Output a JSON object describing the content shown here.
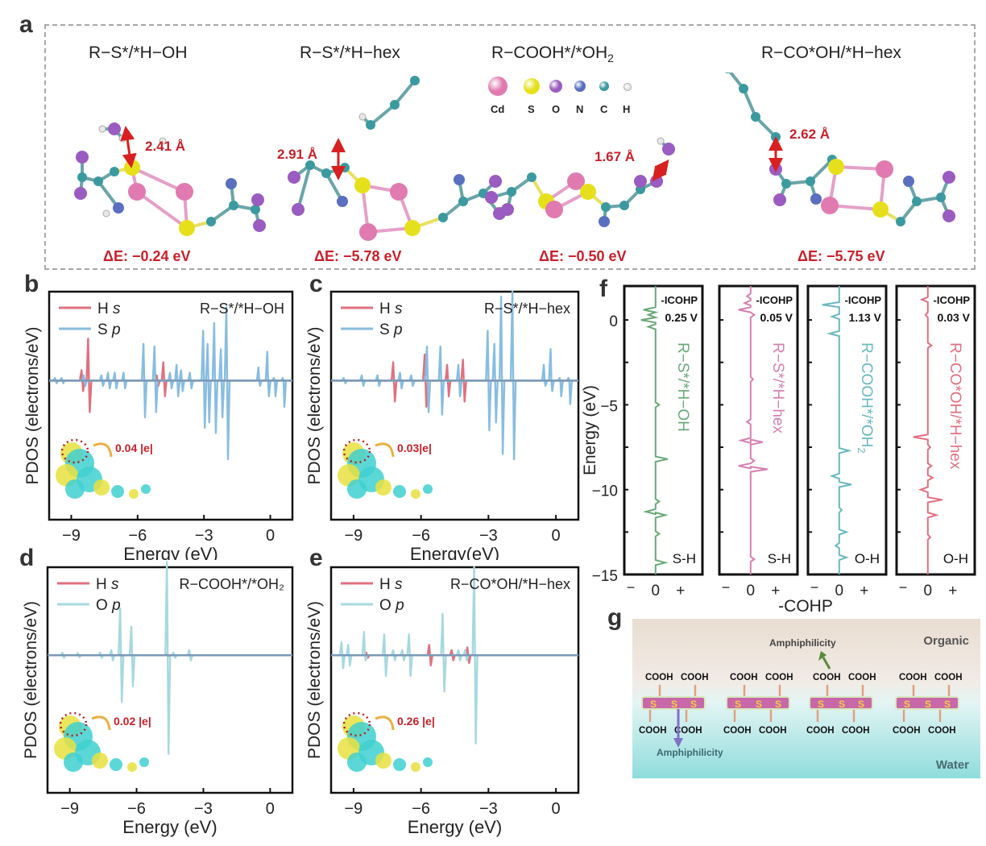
{
  "panel_labels": {
    "a": "a",
    "b": "b",
    "c": "c",
    "d": "d",
    "e": "e",
    "f": "f",
    "g": "g"
  },
  "panel_a": {
    "structures": [
      {
        "title": "R−S*/*H−OH",
        "distance": "2.41 Å",
        "delta_e": "ΔE: −0.24 eV"
      },
      {
        "title": "R−S*/*H−hex",
        "distance": "2.91 Å",
        "delta_e": "ΔE: −5.78 eV"
      },
      {
        "title": "R−COOH*/*OH",
        "title_sub": "2",
        "distance": "1.67 Å",
        "delta_e": "ΔE: −0.50 eV"
      },
      {
        "title": "R−CO*OH/*H−hex",
        "distance": "2.62 Å",
        "delta_e": "ΔE: −5.75 eV"
      }
    ],
    "atom_legend": [
      {
        "label": "Cd",
        "color": "#e07ab0"
      },
      {
        "label": "S",
        "color": "#e6e01c"
      },
      {
        "label": "O",
        "color": "#9a5cc0"
      },
      {
        "label": "N",
        "color": "#5a6fc0"
      },
      {
        "label": "C",
        "color": "#3a9aa0"
      },
      {
        "label": "H",
        "color": "#e8e8e8"
      }
    ]
  },
  "chart_data": [
    {
      "id": "b",
      "type": "line",
      "title": "R−S*/*H−OH",
      "xlabel": "Energy (eV)",
      "ylabel": "PDOS (electrons/eV)",
      "xlim": [
        -10,
        1
      ],
      "xticks": [
        -9,
        -6,
        -3,
        0
      ],
      "xtick_labels": [
        "−9",
        "−6",
        "−3",
        "0"
      ],
      "legend": [
        {
          "name": "H",
          "orb": "s",
          "color": "#e0707e"
        },
        {
          "name": "S",
          "orb": "p",
          "color": "#88bde0"
        }
      ],
      "charge_transfer": "0.04 |e|",
      "series": [
        {
          "name": "H s",
          "color": "#e0707e",
          "peaks": [
            [
              -8.2,
              0.8,
              -0.6
            ],
            [
              -8.5,
              0.2,
              -0.2
            ],
            [
              -4.8,
              0.35,
              -0.3
            ],
            [
              -5.1,
              0.1,
              -0.1
            ]
          ]
        },
        {
          "name": "S p",
          "color": "#88bde0",
          "peaks": [
            [
              -9.7,
              0.05,
              -0.05
            ],
            [
              -9.4,
              0.05,
              -0.05
            ],
            [
              -8.4,
              0.1,
              -0.1
            ],
            [
              -7.6,
              0.1,
              -0.1
            ],
            [
              -7.3,
              0.15,
              -0.15
            ],
            [
              -7.0,
              0.15,
              -0.15
            ],
            [
              -6.6,
              0.15,
              -0.15
            ],
            [
              -5.7,
              0.7,
              -0.7
            ],
            [
              -5.2,
              0.65,
              -0.6
            ],
            [
              -4.5,
              0.15,
              -0.15
            ],
            [
              -4.2,
              0.3,
              -0.3
            ],
            [
              -4.0,
              0.2,
              -0.2
            ],
            [
              -3.6,
              0.15,
              -0.15
            ],
            [
              -3.0,
              0.95,
              -0.9
            ],
            [
              -2.8,
              0.7,
              -0.8
            ],
            [
              -2.5,
              1.1,
              -1.0
            ],
            [
              -2.2,
              0.6,
              -0.7
            ],
            [
              -1.95,
              1.4,
              -1.5
            ],
            [
              -0.5,
              0.25,
              -0.1
            ],
            [
              -0.1,
              0.55,
              -0.3
            ],
            [
              0.2,
              0.05,
              -0.3
            ],
            [
              0.6,
              0.05,
              -0.5
            ]
          ]
        }
      ]
    },
    {
      "id": "c",
      "type": "line",
      "title": "R−S*/*H−hex",
      "xlabel": "Energy(eV)",
      "ylabel": "PDOS (electrons/eV)",
      "xlim": [
        -10,
        1
      ],
      "xticks": [
        -9,
        -6,
        -3,
        0
      ],
      "xtick_labels": [
        "−9",
        "−6",
        "−3",
        "0"
      ],
      "legend": [
        {
          "name": "H",
          "orb": "s",
          "color": "#e0707e"
        },
        {
          "name": "S",
          "orb": "p",
          "color": "#88bde0"
        }
      ],
      "charge_transfer": "0.03|e|",
      "series": [
        {
          "name": "H s",
          "color": "#e0707e",
          "peaks": [
            [
              -7.2,
              0.35,
              -0.4
            ],
            [
              -5.8,
              0.5,
              -0.5
            ],
            [
              -4.8,
              0.3,
              -0.3
            ],
            [
              -4.1,
              0.4,
              -0.4
            ]
          ]
        },
        {
          "name": "S p",
          "color": "#88bde0",
          "peaks": [
            [
              -9.4,
              0.05,
              -0.05
            ],
            [
              -8.6,
              0.1,
              -0.1
            ],
            [
              -7.9,
              0.1,
              -0.1
            ],
            [
              -6.9,
              0.15,
              -0.15
            ],
            [
              -6.4,
              0.1,
              -0.1
            ],
            [
              -5.7,
              0.65,
              -0.6
            ],
            [
              -5.1,
              0.65,
              -0.65
            ],
            [
              -4.3,
              0.3,
              -0.3
            ],
            [
              -3.0,
              0.95,
              -0.95
            ],
            [
              -2.7,
              0.7,
              -0.8
            ],
            [
              -2.4,
              1.6,
              -1.4
            ],
            [
              -1.9,
              1.7,
              -1.5
            ],
            [
              -0.5,
              0.3,
              -0.1
            ],
            [
              -0.2,
              0.6,
              -0.2
            ],
            [
              0.2,
              0.05,
              -0.3
            ],
            [
              0.6,
              0.05,
              -0.45
            ]
          ]
        }
      ]
    },
    {
      "id": "d",
      "type": "line",
      "title": "R−COOH*/*OH₂",
      "xlabel": "Energy (eV)",
      "ylabel": "PDOS (electrons/eV)",
      "xlim": [
        -10,
        1
      ],
      "xticks": [
        -9,
        -6,
        -3,
        0
      ],
      "xtick_labels": [
        "−9",
        "−6",
        "−3",
        "0"
      ],
      "legend": [
        {
          "name": "H",
          "orb": "s",
          "color": "#e0707e"
        },
        {
          "name": "O",
          "orb": "p",
          "color": "#a7d8e0"
        }
      ],
      "charge_transfer": "0.02 |e|",
      "series": [
        {
          "name": "H s",
          "color": "#e0707e",
          "peaks": [
            [
              -6.7,
              0.02,
              -0.02
            ],
            [
              -4.6,
              0.02,
              -0.02
            ]
          ]
        },
        {
          "name": "O p",
          "color": "#a7d8e0",
          "peaks": [
            [
              -9.3,
              0.05,
              -0.05
            ],
            [
              -8.6,
              0.04,
              -0.04
            ],
            [
              -7.6,
              0.05,
              -0.05
            ],
            [
              -7.1,
              0.1,
              -0.1
            ],
            [
              -6.7,
              0.9,
              -0.9
            ],
            [
              -6.2,
              0.55,
              -0.6
            ],
            [
              -4.6,
              1.8,
              -1.9
            ],
            [
              -4.3,
              0.05,
              -0.05
            ],
            [
              -3.6,
              0.1,
              -0.1
            ]
          ]
        }
      ]
    },
    {
      "id": "e",
      "type": "line",
      "title": "R−CO*OH/*H−hex",
      "xlabel": "Energy (eV)",
      "ylabel": "PDOS (electrons/eV)",
      "xlim": [
        -10,
        1
      ],
      "xticks": [
        -9,
        -6,
        -3,
        0
      ],
      "xtick_labels": [
        "−9",
        "−6",
        "−3",
        "0"
      ],
      "legend": [
        {
          "name": "H",
          "orb": "s",
          "color": "#e0707e"
        },
        {
          "name": "O",
          "orb": "p",
          "color": "#a7d8e0"
        }
      ],
      "charge_transfer": "0.26 |e|",
      "series": [
        {
          "name": "H s",
          "color": "#e0707e",
          "peaks": [
            [
              -8.4,
              0.05,
              -0.05
            ],
            [
              -5.6,
              0.2,
              -0.2
            ],
            [
              -4.6,
              0.1,
              -0.1
            ],
            [
              -3.9,
              0.15,
              -0.15
            ]
          ]
        },
        {
          "name": "O p",
          "color": "#a7d8e0",
          "peaks": [
            [
              -9.5,
              0.25,
              -0.25
            ],
            [
              -9.2,
              0.2,
              -0.2
            ],
            [
              -8.5,
              0.45,
              -0.1
            ],
            [
              -7.6,
              0.4,
              -0.4
            ],
            [
              -7.2,
              0.1,
              -0.1
            ],
            [
              -6.8,
              0.1,
              -0.1
            ],
            [
              -6.5,
              0.4,
              -0.4
            ],
            [
              -5.0,
              0.8,
              -0.7
            ],
            [
              -4.3,
              0.1,
              -0.1
            ],
            [
              -4.0,
              0.1,
              -0.1
            ],
            [
              -3.6,
              1.7,
              -1.7
            ]
          ]
        }
      ]
    },
    {
      "id": "f",
      "type": "line",
      "orientation": "vertical",
      "ylabel": "Energy (eV)",
      "xlabel": "-COHP",
      "ylim": [
        -15,
        2
      ],
      "yticks": [
        0,
        -5,
        -10,
        -15
      ],
      "ytick_labels": [
        "0",
        "−5",
        "−10",
        "−15"
      ],
      "xtick_labels": [
        "−",
        "0",
        "+"
      ],
      "subplots": [
        {
          "name": "R−S*/*H−OH",
          "bond": "S-H",
          "icohp_label": "-ICOHP",
          "icohp": "0.25 V",
          "color": "#6aa878",
          "spikes": [
            [
              0.6,
              -0.5
            ],
            [
              0.3,
              -0.3
            ],
            [
              0,
              -0.6
            ],
            [
              -0.4,
              -0.3
            ],
            [
              -5,
              0.15
            ],
            [
              -8.2,
              0.5
            ],
            [
              -10.7,
              0.15
            ],
            [
              -11.3,
              -0.4
            ],
            [
              -11.5,
              0.4
            ],
            [
              -12.6,
              0.15
            ],
            [
              -14.3,
              0.4
            ]
          ]
        },
        {
          "name": "R−S*/*H−hex",
          "bond": "S-H",
          "icohp_label": "-ICOHP",
          "icohp": "0.05 V",
          "color": "#d47fb0",
          "spikes": [
            [
              1.4,
              -0.15
            ],
            [
              1.0,
              -0.25
            ],
            [
              0.6,
              -0.5
            ],
            [
              0.3,
              0.15
            ],
            [
              -3.5,
              0.1
            ],
            [
              -6,
              -0.15
            ],
            [
              -7.1,
              -0.4
            ],
            [
              -7.2,
              0.5
            ],
            [
              -8.3,
              0.15
            ],
            [
              -8.6,
              -0.5
            ],
            [
              -8.8,
              0.7
            ],
            [
              -14.1,
              0.15
            ]
          ]
        },
        {
          "name": "R−COOH*/*OH",
          "name_sub": "2",
          "bond": "O-H",
          "icohp_label": "-ICOHP",
          "icohp": "1.13 V",
          "color": "#6ab8c0",
          "spikes": [
            [
              0.9,
              -0.7
            ],
            [
              0.2,
              -0.3
            ],
            [
              -0.8,
              -0.4
            ],
            [
              -7.7,
              0.4
            ],
            [
              -9.2,
              -0.3
            ],
            [
              -9.7,
              0.5
            ],
            [
              -11.2,
              0.1
            ],
            [
              -12.5,
              0.3
            ],
            [
              -13.3,
              -0.15
            ],
            [
              -14,
              0.3
            ]
          ]
        },
        {
          "name": "R−CO*OH/*H−hex",
          "bond": "O-H",
          "icohp_label": "-ICOHP",
          "icohp": "0.03 V",
          "color": "#e07080",
          "spikes": [
            [
              1.2,
              -0.25
            ],
            [
              0.3,
              -0.1
            ],
            [
              -1.5,
              0.15
            ],
            [
              -6.9,
              -0.6
            ],
            [
              -7.5,
              0.1
            ],
            [
              -8.6,
              0.15
            ],
            [
              -9.3,
              0.2
            ],
            [
              -10,
              -0.3
            ],
            [
              -10.6,
              0.6
            ],
            [
              -11.5,
              0.35
            ],
            [
              -12.8,
              0.1
            ]
          ]
        }
      ]
    }
  ],
  "panel_g": {
    "top_label": "Organic",
    "bottom_label": "Water",
    "arrow_up_label": "Amphiphilicity",
    "arrow_down_label": "Amphiphilicity",
    "group_label": "COOH",
    "sulfur_label": "S",
    "units": 4
  }
}
